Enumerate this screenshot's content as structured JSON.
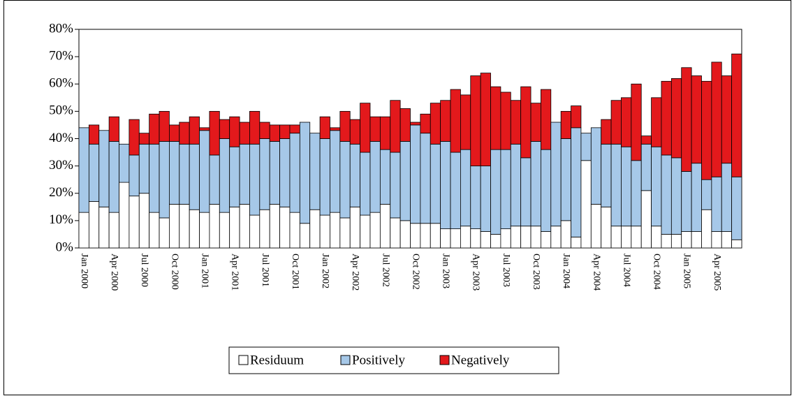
{
  "chart_data": {
    "type": "stacked_bar",
    "categories": [
      "Jan 2000",
      null,
      null,
      "Apr 2000",
      null,
      null,
      "Jul 2000",
      null,
      null,
      "Oct 2000",
      null,
      null,
      "Jan 2001",
      null,
      null,
      "Apr 2001",
      null,
      null,
      "Jul 2001",
      null,
      null,
      "Oct 2001",
      null,
      null,
      "Jan 2002",
      null,
      null,
      "Apr 2002",
      null,
      null,
      "Jul 2002",
      null,
      null,
      "Oct 2002",
      null,
      null,
      "Jan 2003",
      null,
      null,
      "Apr 2003",
      null,
      null,
      "Jul 2003",
      null,
      null,
      "Oct 2003",
      null,
      null,
      "Jan 2004",
      null,
      null,
      "Apr 2004",
      null,
      null,
      "Jul 2004",
      null,
      null,
      "Oct 2004",
      null,
      null,
      "Jan 2005",
      null,
      null,
      "Apr 2005",
      null,
      null
    ],
    "series": [
      {
        "name": "Residuum",
        "color": "#ffffff",
        "values": [
          13,
          17,
          15,
          13,
          24,
          19,
          20,
          13,
          11,
          16,
          16,
          14,
          13,
          16,
          13,
          15,
          16,
          12,
          14,
          16,
          15,
          13,
          9,
          14,
          12,
          13,
          11,
          15,
          12,
          13,
          16,
          11,
          10,
          9,
          9,
          9,
          7,
          7,
          8,
          7,
          6,
          5,
          7,
          8,
          8,
          8,
          6,
          8,
          10,
          4,
          32,
          16,
          15,
          8,
          8,
          8,
          21,
          8,
          5,
          5,
          6,
          6,
          14,
          6,
          6,
          3
        ]
      },
      {
        "name": "Positively",
        "color": "#a6c8e8",
        "values": [
          31,
          21,
          28,
          26,
          14,
          15,
          18,
          25,
          28,
          23,
          22,
          24,
          30,
          18,
          27,
          22,
          22,
          26,
          26,
          23,
          25,
          29,
          37,
          28,
          28,
          30,
          28,
          23,
          23,
          26,
          20,
          24,
          29,
          36,
          33,
          29,
          32,
          28,
          28,
          23,
          24,
          31,
          29,
          30,
          25,
          31,
          30,
          38,
          30,
          40,
          10,
          28,
          23,
          30,
          29,
          24,
          17,
          29,
          29,
          28,
          22,
          25,
          11,
          20,
          25,
          23
        ]
      },
      {
        "name": "Negatively",
        "color": "#e3191c",
        "values": [
          0,
          7,
          0,
          9,
          0,
          13,
          4,
          11,
          11,
          6,
          8,
          10,
          1,
          16,
          7,
          11,
          8,
          12,
          6,
          6,
          5,
          3,
          0,
          0,
          8,
          1,
          11,
          9,
          18,
          9,
          12,
          19,
          12,
          1,
          7,
          15,
          15,
          23,
          20,
          33,
          34,
          23,
          21,
          16,
          26,
          14,
          22,
          0,
          10,
          8,
          0,
          0,
          9,
          16,
          18,
          28,
          3,
          18,
          27,
          29,
          38,
          32,
          36,
          42,
          32,
          45
        ]
      }
    ],
    "ylim": [
      0,
      80
    ],
    "yticks": [
      {
        "value": 0,
        "label": "0%"
      },
      {
        "value": 10,
        "label": "10%"
      },
      {
        "value": 20,
        "label": "20%"
      },
      {
        "value": 30,
        "label": "30%"
      },
      {
        "value": 40,
        "label": "40%"
      },
      {
        "value": 50,
        "label": "50%"
      },
      {
        "value": 60,
        "label": "60%"
      },
      {
        "value": 70,
        "label": "70%"
      },
      {
        "value": 80,
        "label": "80%"
      }
    ],
    "legend": "bottom"
  }
}
